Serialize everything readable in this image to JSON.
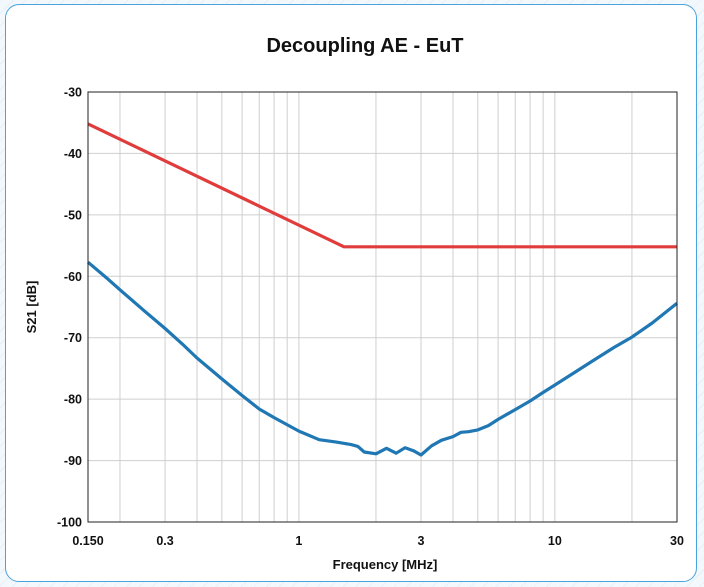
{
  "chart_data": {
    "type": "line",
    "title": "Decoupling AE - EuT",
    "xlabel": "Frequency [MHz]",
    "ylabel": "S21 [dB]",
    "x_scale": "log",
    "xlim": [
      0.15,
      30
    ],
    "ylim": [
      -100,
      -30
    ],
    "x_ticks": [
      0.15,
      0.3,
      1,
      3,
      10,
      30
    ],
    "x_tick_labels": [
      "0.150",
      "0.3",
      "1",
      "3",
      "10",
      "30"
    ],
    "y_ticks": [
      -30,
      -40,
      -50,
      -60,
      -70,
      -80,
      -90,
      -100
    ],
    "y_tick_labels": [
      "-30",
      "-40",
      "-50",
      "-60",
      "-70",
      "-80",
      "-90",
      "-100"
    ],
    "grid": true,
    "series": [
      {
        "color": "#e03c3c",
        "x": [
          0.15,
          1.5,
          30
        ],
        "y": [
          -35.2,
          -55.2,
          -55.2
        ]
      },
      {
        "color": "#1f77b4",
        "x": [
          0.15,
          0.18,
          0.2,
          0.25,
          0.3,
          0.35,
          0.4,
          0.5,
          0.6,
          0.7,
          0.8,
          1.0,
          1.2,
          1.4,
          1.6,
          1.7,
          1.8,
          2.0,
          2.2,
          2.4,
          2.6,
          2.8,
          3.0,
          3.3,
          3.6,
          4.0,
          4.3,
          4.6,
          5.0,
          5.5,
          6.0,
          7.0,
          8.0,
          9.0,
          10,
          12,
          14,
          17,
          20,
          24,
          30
        ],
        "y": [
          -57.7,
          -60.5,
          -62.2,
          -65.7,
          -68.5,
          -71.0,
          -73.3,
          -76.7,
          -79.4,
          -81.6,
          -83.0,
          -85.2,
          -86.6,
          -87.0,
          -87.4,
          -87.7,
          -88.6,
          -88.9,
          -88.0,
          -88.8,
          -87.9,
          -88.4,
          -89.1,
          -87.6,
          -86.7,
          -86.1,
          -85.4,
          -85.3,
          -85.0,
          -84.3,
          -83.3,
          -81.7,
          -80.3,
          -78.9,
          -77.7,
          -75.6,
          -73.8,
          -71.6,
          -69.9,
          -67.6,
          -64.4
        ]
      }
    ]
  }
}
